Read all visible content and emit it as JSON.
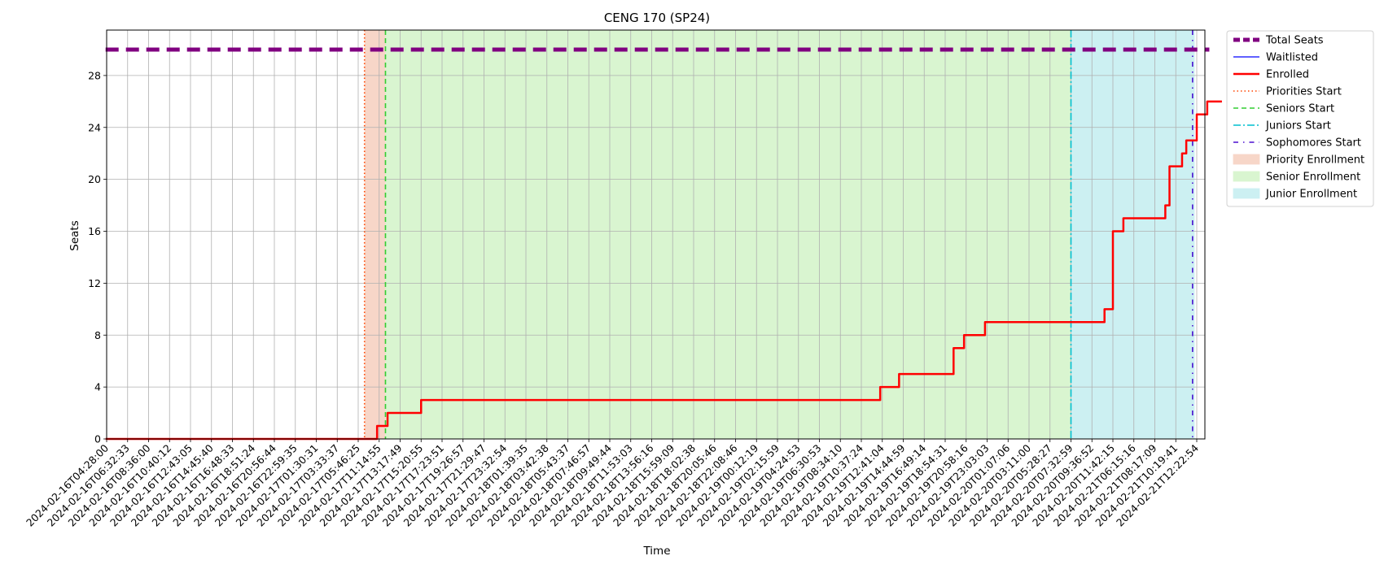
{
  "chart_data": {
    "type": "line",
    "title": "CENG 170 (SP24)",
    "xlabel": "Time",
    "ylabel": "Seats",
    "ylim": [
      0,
      31.5
    ],
    "yticks": [
      0,
      4,
      8,
      12,
      16,
      20,
      24,
      28
    ],
    "grid": true,
    "legend_position": "outside-top-right",
    "x_ticks": [
      "2024-02-16T04:28:00",
      "2024-02-16T06:32:33",
      "2024-02-16T08:36:00",
      "2024-02-16T10:40:12",
      "2024-02-16T12:43:05",
      "2024-02-16T14:45:40",
      "2024-02-16T16:48:33",
      "2024-02-16T18:51:24",
      "2024-02-16T20:56:44",
      "2024-02-16T22:59:35",
      "2024-02-17T01:30:31",
      "2024-02-17T03:33:37",
      "2024-02-17T05:46:25",
      "2024-02-17T11:14:55",
      "2024-02-17T13:17:49",
      "2024-02-17T15:20:55",
      "2024-02-17T17:23:51",
      "2024-02-17T19:26:57",
      "2024-02-17T21:29:47",
      "2024-02-17T23:32:54",
      "2024-02-18T01:39:35",
      "2024-02-18T03:42:38",
      "2024-02-18T05:43:37",
      "2024-02-18T07:46:57",
      "2024-02-18T09:49:44",
      "2024-02-18T11:53:03",
      "2024-02-18T13:56:16",
      "2024-02-18T15:59:09",
      "2024-02-18T18:02:38",
      "2024-02-18T20:05:46",
      "2024-02-18T22:08:46",
      "2024-02-19T00:12:19",
      "2024-02-19T02:15:59",
      "2024-02-19T04:24:53",
      "2024-02-19T06:30:53",
      "2024-02-19T08:34:10",
      "2024-02-19T10:37:24",
      "2024-02-19T12:41:04",
      "2024-02-19T14:44:59",
      "2024-02-19T16:49:14",
      "2024-02-19T18:54:31",
      "2024-02-19T20:58:16",
      "2024-02-19T23:03:03",
      "2024-02-20T01:07:06",
      "2024-02-20T03:11:00",
      "2024-02-20T05:28:27",
      "2024-02-20T07:32:59",
      "2024-02-20T09:36:52",
      "2024-02-20T11:42:15",
      "2024-02-21T06:15:16",
      "2024-02-21T08:17:09",
      "2024-02-21T10:19:41",
      "2024-02-21T12:22:54"
    ],
    "series": [
      {
        "name": "Total Seats",
        "color": "#800080",
        "style": "dashed-thick",
        "x_index": [
          -0.05,
          52.6
        ],
        "values": [
          30,
          30
        ]
      },
      {
        "name": "Waitlisted",
        "color": "#0000ff",
        "style": "solid-thin",
        "x_index": [],
        "values": []
      },
      {
        "name": "Enrolled",
        "color": "#ff0000",
        "style": "solid-thick",
        "x_index": [
          -0.05,
          12.5,
          12.5,
          12.9,
          12.9,
          13.3,
          13.3,
          13.4,
          13.4,
          15.0,
          15.0,
          16.0,
          22.0,
          31.0,
          36.0,
          36.9,
          36.9,
          37.8,
          37.8,
          40.4,
          40.4,
          40.9,
          40.9,
          41.4,
          41.4,
          41.9,
          41.9,
          47.0,
          47.0,
          47.6,
          47.6,
          48.0,
          48.0,
          48.5,
          48.5,
          49.0,
          49.0,
          50.5,
          50.5,
          50.7,
          50.7,
          51.3,
          51.3,
          51.5,
          51.5,
          52.0,
          52.0,
          52.5,
          52.5,
          52.9,
          52.9,
          53.2
        ],
        "values": [
          0,
          0,
          0,
          0,
          1,
          1,
          1,
          1,
          2,
          2,
          3,
          3,
          3,
          3,
          3,
          3,
          4,
          4,
          5,
          5,
          7,
          7,
          8,
          8,
          8,
          8,
          9,
          9,
          9,
          9,
          10,
          10,
          16,
          16,
          17,
          17,
          17,
          17,
          18,
          18,
          21,
          21,
          22,
          22,
          23,
          23,
          25,
          25,
          26,
          26,
          26,
          26
        ]
      }
    ],
    "vertical_lines": [
      {
        "name": "Priorities Start",
        "color": "#ff4500",
        "style": "dotted",
        "x_index": 12.3
      },
      {
        "name": "Seniors Start",
        "color": "#32cd32",
        "style": "dashed",
        "x_index": 13.3
      },
      {
        "name": "Juniors Start",
        "color": "#00bfcf",
        "style": "dashdot",
        "x_index": 46.0
      },
      {
        "name": "Sophomores Start",
        "color": "#4b0fd0",
        "style": "loose-dashdot",
        "x_index": 51.8
      }
    ],
    "shaded_regions": [
      {
        "name": "Priority Enrollment",
        "color": "#f7d6c8",
        "x_start_index": 12.3,
        "x_end_index": 13.3
      },
      {
        "name": "Senior Enrollment",
        "color": "#d9f5d0",
        "x_start_index": 13.3,
        "x_end_index": 46.0
      },
      {
        "name": "Junior Enrollment",
        "color": "#ccf0f2",
        "x_start_index": 46.0,
        "x_end_index": 51.9
      }
    ]
  }
}
